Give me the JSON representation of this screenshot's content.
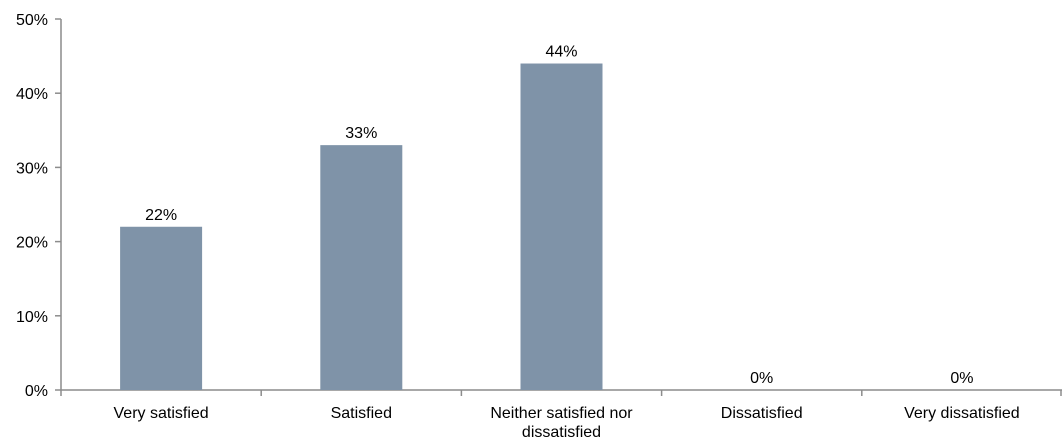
{
  "chart_data": {
    "type": "bar",
    "categories": [
      [
        "Very satisfied"
      ],
      [
        "Satisfied"
      ],
      [
        "Neither satisfied nor",
        "dissatisfied"
      ],
      [
        "Dissatisfied"
      ],
      [
        "Very dissatisfied"
      ]
    ],
    "values": [
      22,
      33,
      44,
      0,
      0
    ],
    "data_labels": [
      "22%",
      "33%",
      "44%",
      "0%",
      "0%"
    ],
    "y_ticks": [
      "0%",
      "10%",
      "20%",
      "30%",
      "40%",
      "50%"
    ],
    "ylim": [
      0,
      50
    ],
    "bar_color": "#7f93a8",
    "axis_color": "#8c8c8c",
    "grid": false,
    "legend": "none"
  }
}
